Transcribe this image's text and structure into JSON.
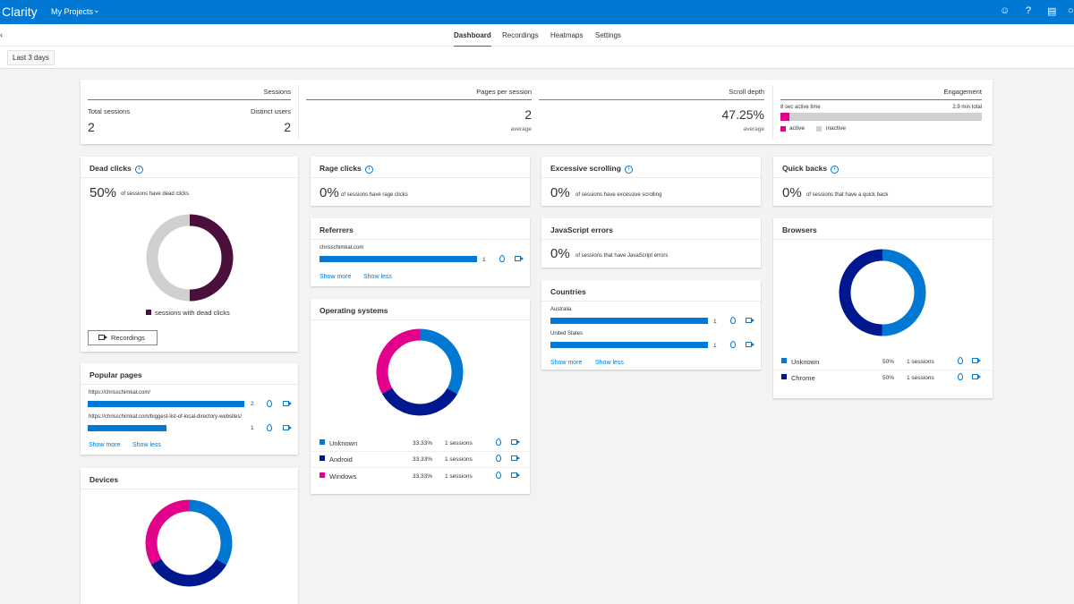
{
  "header": {
    "brand": "Clarity",
    "project": "My Projects",
    "icons": [
      "smiley-icon",
      "help-icon",
      "document-icon",
      "user-icon"
    ],
    "accent": "#0078d4"
  },
  "nav": {
    "tabs": [
      "Dashboard",
      "Recordings",
      "Heatmaps",
      "Settings"
    ],
    "active": "Dashboard"
  },
  "filter": {
    "date_range": "Last 3 days"
  },
  "summary": {
    "sessions": {
      "title": "Sessions",
      "total_label": "Total sessions",
      "total": "2",
      "distinct_label": "Distinct users",
      "distinct": "2"
    },
    "pages": {
      "title": "Pages per session",
      "value": "2",
      "sub": "average"
    },
    "scroll": {
      "title": "Scroll depth",
      "value": "47.25%",
      "sub": "average"
    },
    "engagement": {
      "title": "Engagement",
      "active_time": "8 sec active time",
      "total_time": "2.9 min total",
      "active_label": "active",
      "inactive_label": "inactive",
      "active_fraction": 0.046
    }
  },
  "dead_clicks": {
    "title": "Dead clicks",
    "pct": "50%",
    "desc": "of sessions have dead clicks",
    "legend": "sessions with dead clicks",
    "button": "Recordings",
    "fraction": 0.5,
    "color": "#4a0f3a"
  },
  "rage_clicks": {
    "title": "Rage clicks",
    "pct": "0%",
    "desc": "of sessions have rage clicks"
  },
  "excessive_scrolling": {
    "title": "Excessive scrolling",
    "pct": "0%",
    "desc": "of sessions have excessive scrolling"
  },
  "quick_backs": {
    "title": "Quick backs",
    "pct": "0%",
    "desc": "of sessions that have a quick back"
  },
  "js_errors": {
    "title": "JavaScript errors",
    "pct": "0%",
    "desc": "of sessions that have JavaScript errors"
  },
  "referrers": {
    "title": "Referrers",
    "items": [
      {
        "label": "chrisschimkat.com",
        "count": "1"
      }
    ],
    "show_more": "Show more",
    "show_less": "Show less"
  },
  "countries": {
    "title": "Countries",
    "items": [
      {
        "label": "Australia",
        "count": "1"
      },
      {
        "label": "United States",
        "count": "1"
      }
    ],
    "show_more": "Show more",
    "show_less": "Show less"
  },
  "popular_pages": {
    "title": "Popular pages",
    "items": [
      {
        "label": "https://chrisschimkat.com/",
        "count": "2"
      },
      {
        "label": "https://chrisschimkat.com/biggest-list-of-local-directory-websites/",
        "count": "1"
      }
    ],
    "show_more": "Show more",
    "show_less": "Show less"
  },
  "operating_systems": {
    "title": "Operating systems",
    "items": [
      {
        "label": "Unknown",
        "pct": "33.33%",
        "sessions": "1 sessions",
        "color": "#0078d4",
        "fraction": 0.3333
      },
      {
        "label": "Android",
        "pct": "33.33%",
        "sessions": "1 sessions",
        "color": "#00188f",
        "fraction": 0.3333
      },
      {
        "label": "Windows",
        "pct": "33.33%",
        "sessions": "1 sessions",
        "color": "#e3008c",
        "fraction": 0.3334
      }
    ]
  },
  "browsers": {
    "title": "Browsers",
    "items": [
      {
        "label": "Unknown",
        "pct": "50%",
        "sessions": "1 sessions",
        "color": "#0078d4",
        "fraction": 0.5
      },
      {
        "label": "Chrome",
        "pct": "50%",
        "sessions": "1 sessions",
        "color": "#00188f",
        "fraction": 0.5
      }
    ]
  },
  "devices": {
    "title": "Devices",
    "segments": [
      {
        "color": "#0078d4",
        "fraction": 0.3333
      },
      {
        "color": "#00188f",
        "fraction": 0.3333
      },
      {
        "color": "#e3008c",
        "fraction": 0.3334
      }
    ]
  }
}
